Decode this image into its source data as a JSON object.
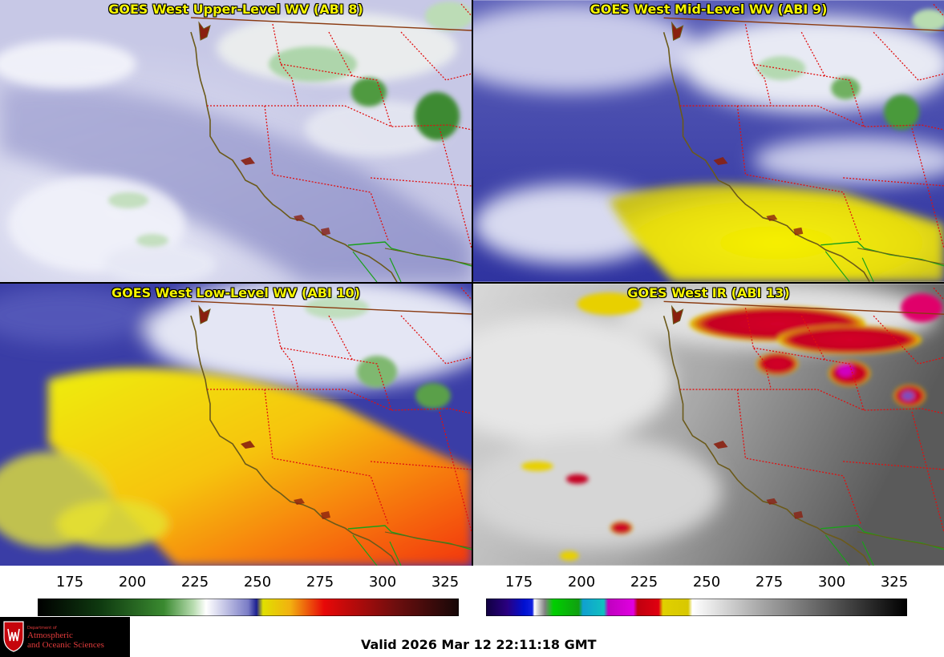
{
  "panels": [
    {
      "title": "GOES West Upper-Level WV (ABI 8)",
      "palette": "wv-upper"
    },
    {
      "title": "GOES West Mid-Level WV (ABI 9)",
      "palette": "wv-mid"
    },
    {
      "title": "GOES West Low-Level WV (ABI 10)",
      "palette": "wv-low"
    },
    {
      "title": "GOES West IR (ABI 13)",
      "palette": "ir"
    }
  ],
  "colorbars": {
    "wv": {
      "ticks": [
        "175",
        "200",
        "225",
        "250",
        "275",
        "300",
        "325"
      ]
    },
    "ir": {
      "ticks": [
        "175",
        "200",
        "225",
        "250",
        "275",
        "300",
        "325"
      ]
    }
  },
  "logo": {
    "line1": "Department of",
    "line2": "Atmospheric",
    "line3": "and Oceanic Sciences"
  },
  "valid_time": "Valid 2026 Mar 12 22:11:18 GMT",
  "colors": {
    "title_text": "#f5f500",
    "state_borders": "#e01010",
    "coastline": "#6b5a1a",
    "mexico_border": "#1aa01a"
  }
}
